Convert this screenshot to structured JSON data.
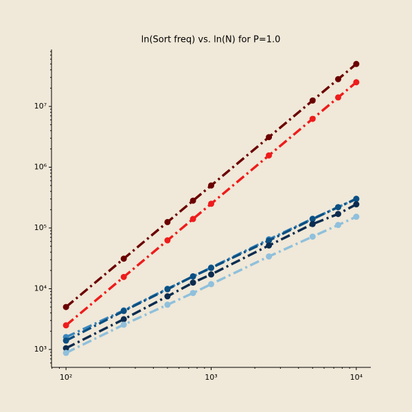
{
  "chart_data": {
    "type": "line",
    "title": "ln(Sort freq) vs. ln(N) for P=1.0",
    "x": [
      100,
      250,
      500,
      750,
      1000,
      2500,
      5000,
      7500,
      10000
    ],
    "series": [
      {
        "color": "#6b0000",
        "values": [
          5000,
          31250,
          125000,
          281250,
          500000,
          3125000,
          12500000,
          28125000,
          50000000
        ]
      },
      {
        "color": "#ee1c1c",
        "values": [
          2500,
          15625,
          62500,
          140625,
          250000,
          1562500,
          6250000,
          14062500,
          25000000
        ]
      },
      {
        "color": "#3a86bd",
        "values": [
          1600,
          4400,
          10000,
          15900,
          22300,
          65000,
          142000,
          220000,
          303000
        ]
      },
      {
        "color": "#0b4f82",
        "values": [
          1400,
          4300,
          9800,
          16000,
          22000,
          62000,
          140000,
          220000,
          300000
        ]
      },
      {
        "color": "#0c2c4f",
        "values": [
          1050,
          3150,
          7500,
          12600,
          17200,
          51500,
          116000,
          170000,
          245000
        ]
      },
      {
        "color": "#8fc0dc",
        "values": [
          880,
          2560,
          5450,
          8500,
          11900,
          34000,
          72000,
          112000,
          153000
        ]
      }
    ],
    "log_x": true,
    "log_y": true,
    "xlim": [
      79.43,
      12589
    ],
    "ylim": [
      508,
      86700000
    ],
    "xticks": [
      {
        "value": 100,
        "label": "10²"
      },
      {
        "value": 1000,
        "label": "10³"
      },
      {
        "value": 10000,
        "label": "10⁴"
      }
    ],
    "yticks": [
      {
        "value": 1000,
        "label": "10³"
      },
      {
        "value": 10000,
        "label": "10⁴"
      },
      {
        "value": 100000,
        "label": "10⁵"
      },
      {
        "value": 1000000,
        "label": "10⁶"
      },
      {
        "value": 10000000,
        "label": "10⁷"
      }
    ],
    "xminorticks": [
      80,
      90,
      200,
      300,
      400,
      500,
      600,
      700,
      800,
      900,
      2000,
      3000,
      4000,
      5000,
      6000,
      7000,
      8000,
      9000
    ],
    "yminorticks": [
      600,
      700,
      800,
      900,
      2000,
      3000,
      4000,
      5000,
      6000,
      7000,
      8000,
      9000,
      20000,
      30000,
      40000,
      50000,
      60000,
      70000,
      80000,
      90000,
      200000,
      300000,
      400000,
      500000,
      600000,
      700000,
      800000,
      900000,
      2000000,
      3000000,
      4000000,
      5000000,
      6000000,
      7000000,
      8000000,
      9000000,
      20000000,
      30000000,
      40000000,
      50000000,
      60000000,
      70000000,
      80000000
    ],
    "grid": false
  }
}
